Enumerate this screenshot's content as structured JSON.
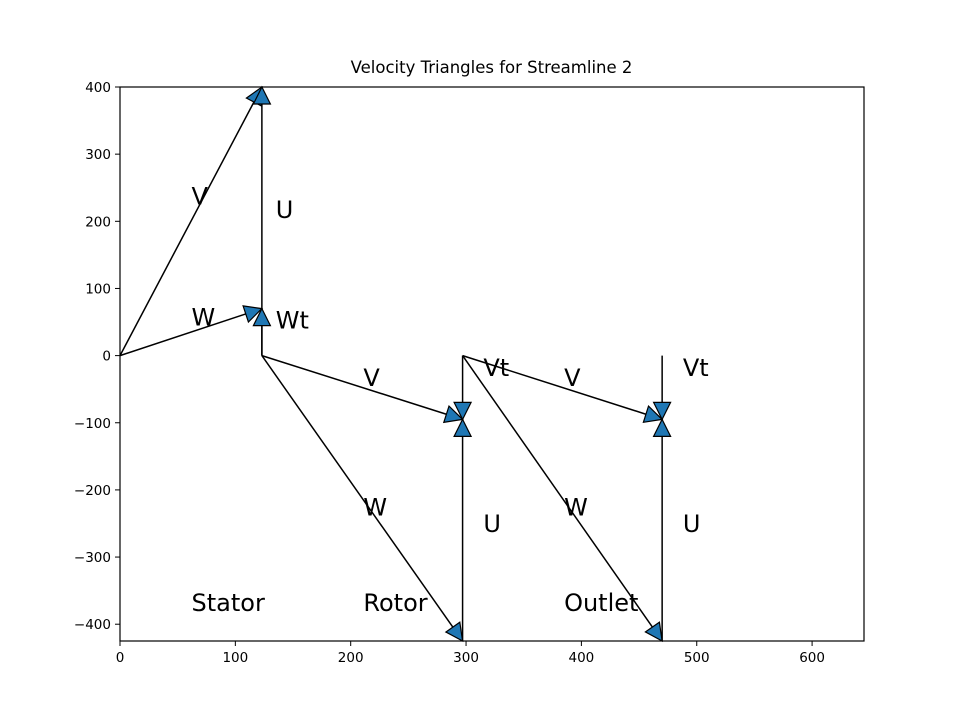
{
  "chart_data": {
    "type": "diagram",
    "title": "Velocity Triangles for Streamline 2",
    "xlim": [
      0,
      645
    ],
    "ylim": [
      -425,
      400
    ],
    "x_ticks": [
      0,
      100,
      200,
      300,
      400,
      500,
      600
    ],
    "y_ticks": [
      400,
      300,
      200,
      100,
      0,
      -100,
      -200,
      -300,
      -400
    ],
    "tick_labels_x": [
      "0",
      "100",
      "200",
      "300",
      "400",
      "500",
      "600"
    ],
    "tick_labels_y": [
      "400",
      "300",
      "200",
      "100",
      "0",
      "−100",
      "−200",
      "−300",
      "−400"
    ],
    "arrow_color": "#1f77b4",
    "vectors": [
      {
        "name": "V",
        "x1": 0,
        "y1": 0,
        "x2": 123,
        "y2": 400
      },
      {
        "name": "U",
        "x1": 123,
        "y1": 0,
        "x2": 123,
        "y2": 400
      },
      {
        "name": "W",
        "x1": 0,
        "y1": 0,
        "x2": 123,
        "y2": 70
      },
      {
        "name": "Wt",
        "x1": 123,
        "y1": 0,
        "x2": 123,
        "y2": 70
      },
      {
        "name": "V",
        "x1": 123,
        "y1": 0,
        "x2": 297,
        "y2": -95
      },
      {
        "name": "W",
        "x1": 123,
        "y1": 0,
        "x2": 297,
        "y2": -425
      },
      {
        "name": "U",
        "x1": 297,
        "y1": -425,
        "x2": 297,
        "y2": -95
      },
      {
        "name": "Vt",
        "x1": 297,
        "y1": 0,
        "x2": 297,
        "y2": -95
      },
      {
        "name": "V",
        "x1": 297,
        "y1": 0,
        "x2": 470,
        "y2": -95
      },
      {
        "name": "W",
        "x1": 297,
        "y1": 0,
        "x2": 470,
        "y2": -425
      },
      {
        "name": "U",
        "x1": 470,
        "y1": -425,
        "x2": 470,
        "y2": -95
      },
      {
        "name": "Vt",
        "x1": 470,
        "y1": 0,
        "x2": 470,
        "y2": -95
      }
    ],
    "labels": [
      {
        "text": "V",
        "x": 62,
        "y": 225
      },
      {
        "text": "U",
        "x": 135,
        "y": 205
      },
      {
        "text": "W",
        "x": 62,
        "y": 45
      },
      {
        "text": "Wt",
        "x": 135,
        "y": 40
      },
      {
        "text": "V",
        "x": 211,
        "y": -45
      },
      {
        "text": "Vt",
        "x": 315,
        "y": -30
      },
      {
        "text": "V",
        "x": 385,
        "y": -45
      },
      {
        "text": "Vt",
        "x": 488,
        "y": -30
      },
      {
        "text": "W",
        "x": 211,
        "y": -238
      },
      {
        "text": "W",
        "x": 385,
        "y": -238
      },
      {
        "text": "U",
        "x": 315,
        "y": -263
      },
      {
        "text": "U",
        "x": 488,
        "y": -263
      },
      {
        "text": "Stator",
        "x": 62,
        "y": -380
      },
      {
        "text": "Rotor",
        "x": 211,
        "y": -380
      },
      {
        "text": "Outlet",
        "x": 385,
        "y": -380
      }
    ]
  }
}
